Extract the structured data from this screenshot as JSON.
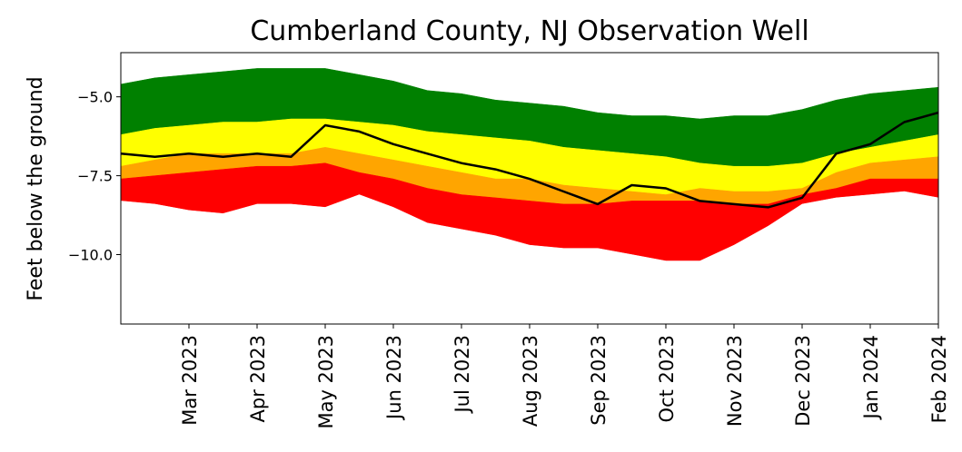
{
  "chart_data": {
    "type": "band",
    "title": "Cumberland County, NJ Observation Well",
    "y_label": "Feet below the ground",
    "categories": [
      null,
      null,
      "Mar 2023",
      null,
      "Apr 2023",
      null,
      "May 2023",
      null,
      "Jun 2023",
      null,
      "Jul 2023",
      null,
      "Aug 2023",
      null,
      "Sep 2023",
      null,
      "Oct 2023",
      null,
      "Nov 2023",
      null,
      "Dec 2023",
      null,
      "Jan 2024",
      null,
      "Feb 2024"
    ],
    "ylim": [
      -12.2,
      -3.6
    ],
    "yticks": [
      {
        "value": -5,
        "label": "−5.0"
      },
      {
        "value": -7.5,
        "label": "−7.5"
      },
      {
        "value": -10,
        "label": "−10.0"
      }
    ],
    "series": [
      {
        "color": "#008000",
        "values": [
          -4.6,
          -4.4,
          -4.3,
          -4.2,
          -4.1,
          -4.1,
          -4.1,
          -4.3,
          -4.5,
          -4.8,
          -4.9,
          -5.1,
          -5.2,
          -5.3,
          -5.5,
          -5.6,
          -5.6,
          -5.7,
          -5.6,
          -5.6,
          -5.4,
          -5.1,
          -4.9,
          -4.8,
          -4.7
        ]
      },
      {
        "color": "#ffff00",
        "values": [
          -6.2,
          -6.0,
          -5.9,
          -5.8,
          -5.8,
          -5.7,
          -5.7,
          -5.8,
          -5.9,
          -6.1,
          -6.2,
          -6.3,
          -6.4,
          -6.6,
          -6.7,
          -6.8,
          -6.9,
          -7.1,
          -7.2,
          -7.2,
          -7.1,
          -6.8,
          -6.6,
          -6.4,
          -6.2
        ]
      },
      {
        "color": "#ffa500",
        "values": [
          -7.2,
          -7.0,
          -6.8,
          -6.8,
          -6.8,
          -6.8,
          -6.6,
          -6.8,
          -7.0,
          -7.2,
          -7.4,
          -7.6,
          -7.6,
          -7.8,
          -7.9,
          -8.0,
          -8.1,
          -7.9,
          -8.0,
          -8.0,
          -7.9,
          -7.4,
          -7.1,
          -7.0,
          -6.9
        ]
      },
      {
        "color": "#ff0000",
        "values": [
          -7.6,
          -7.5,
          -7.4,
          -7.3,
          -7.2,
          -7.2,
          -7.1,
          -7.4,
          -7.6,
          -7.9,
          -8.1,
          -8.2,
          -8.3,
          -8.4,
          -8.4,
          -8.3,
          -8.3,
          -8.3,
          -8.4,
          -8.4,
          -8.1,
          -7.9,
          -7.6,
          -7.6,
          -7.6
        ]
      },
      {
        "color": "#ffffff",
        "values": [
          -8.3,
          -8.4,
          -8.6,
          -8.7,
          -8.4,
          -8.4,
          -8.5,
          -8.1,
          -8.5,
          -9.0,
          -9.2,
          -9.4,
          -9.7,
          -9.8,
          -9.8,
          -10.0,
          -10.2,
          -10.2,
          -9.7,
          -9.1,
          -8.4,
          -8.2,
          -8.1,
          -8.0,
          -8.2
        ]
      }
    ],
    "line": {
      "color": "#000000",
      "values": [
        -6.8,
        -6.9,
        -6.8,
        -6.9,
        -6.8,
        -6.9,
        -5.9,
        -6.1,
        -6.5,
        -6.8,
        -7.1,
        -7.3,
        -7.6,
        -8.0,
        -8.4,
        -7.8,
        -7.9,
        -8.3,
        -8.4,
        -8.5,
        -8.2,
        -6.8,
        -6.5,
        -5.8,
        -5.5
      ]
    }
  }
}
